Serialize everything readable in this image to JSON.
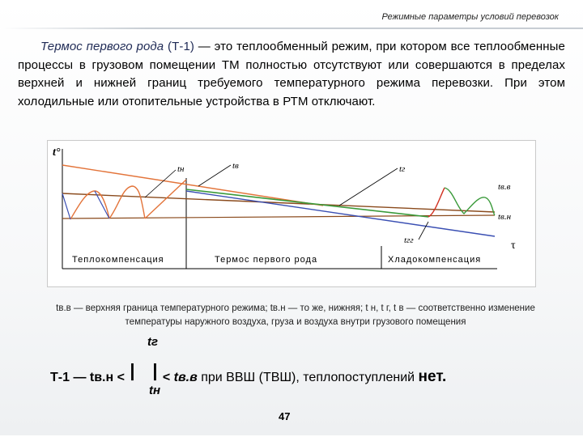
{
  "header": {
    "title": "Режимные параметры условий перевозок"
  },
  "intro": {
    "term": "Термос первого рода",
    "code": "(Т-1)",
    "body": " — это теплообменный режим, при котором все теплообменные процессы в грузовом помещении ТМ полностью отсутствуют или совершаются в пределах верхней и нижней границ требуемого температурного режима перевозки. При этом холодильные или отопительные устройства в РТМ отключают."
  },
  "chart": {
    "y_axis_label": "t°",
    "x_axis_label": "τ",
    "series_labels": {
      "tn": "tн",
      "tv": "tв",
      "tg": "tг",
      "t_vv": "tв.в",
      "t_vn": "tв.н",
      "t_ih": "tгг"
    },
    "zones": [
      "Теплокомпенсация",
      "Термос первого рода",
      "Хладокомпенсация"
    ],
    "colors": {
      "outside_air": "#e3743a",
      "cargo": "#3a4fb3",
      "inside_air": "#3a9a3a",
      "bound_upper": "#8a4a1c",
      "bound_lower": "#8a4a1c",
      "heater_wave": "#e3743a",
      "cooler_wave": "#3a9a3a",
      "cooler_spike": "#d03020"
    }
  },
  "caption": "tв.в — верхняя граница температурного режима; tв.н — то же, нижняя; t н, t г, t в — соответственно изменение температуры наружного воздуха, груза и воздуха внутри грузового помещения",
  "formula": {
    "top": "tг",
    "bottom": "tн",
    "prefix": "Т-1 — tв.н <",
    "suffix_op": "<",
    "suffix_var": "tв.в",
    "suffix_text": " при ВВШ (ТВШ), теплопоступлений",
    "net": "нет."
  },
  "page_number": "47"
}
